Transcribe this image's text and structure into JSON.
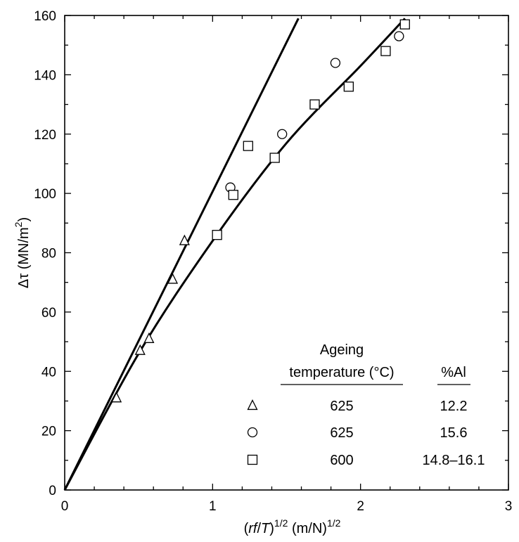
{
  "chart_data": {
    "type": "scatter",
    "xlabel_parts": [
      "(",
      "rf",
      "/",
      "T",
      ")",
      "1/2",
      " (m/N)",
      "1/2"
    ],
    "ylabel_parts": [
      "Δτ (MN/m",
      "2",
      ")"
    ],
    "xlim": [
      0,
      3
    ],
    "ylim": [
      0,
      160
    ],
    "x_ticks": [
      0,
      1,
      2,
      3
    ],
    "y_ticks": [
      0,
      20,
      40,
      60,
      80,
      100,
      120,
      140,
      160
    ],
    "x_tick_labels": [
      "0",
      "1",
      "2",
      "3"
    ],
    "y_tick_labels": [
      "0",
      "20",
      "40",
      "60",
      "80",
      "100",
      "120",
      "140",
      "160"
    ],
    "grid": false,
    "legend": {
      "placement": "bottom-right",
      "col1_header": [
        "Ageing",
        "temperature (°C)"
      ],
      "col2_header": "%Al",
      "rows": [
        {
          "marker": "triangle",
          "temperature": "625",
          "al": "12.2"
        },
        {
          "marker": "circle",
          "temperature": "625",
          "al": "15.6"
        },
        {
          "marker": "square",
          "temperature": "600",
          "al": "14.8–16.1"
        }
      ]
    },
    "series": [
      {
        "marker": "triangle",
        "x": [
          0.35,
          0.51,
          0.57,
          0.73,
          0.81
        ],
        "y": [
          31,
          47,
          51,
          71,
          84
        ]
      },
      {
        "marker": "circle",
        "x": [
          1.12,
          1.47,
          1.83,
          2.26
        ],
        "y": [
          102,
          120,
          144,
          153
        ]
      },
      {
        "marker": "square",
        "x": [
          1.03,
          1.14,
          1.24,
          1.42,
          1.69,
          1.92,
          2.17,
          2.3
        ],
        "y": [
          86,
          99.5,
          116,
          112,
          130,
          136,
          148,
          157
        ]
      }
    ],
    "lines": [
      {
        "x": [
          0,
          1.58
        ],
        "y": [
          0,
          159
        ]
      },
      {
        "x": [
          0,
          0.5,
          1.0,
          1.5,
          2.0,
          2.3
        ],
        "y": [
          0,
          46,
          84,
          117,
          143,
          159
        ]
      }
    ]
  }
}
